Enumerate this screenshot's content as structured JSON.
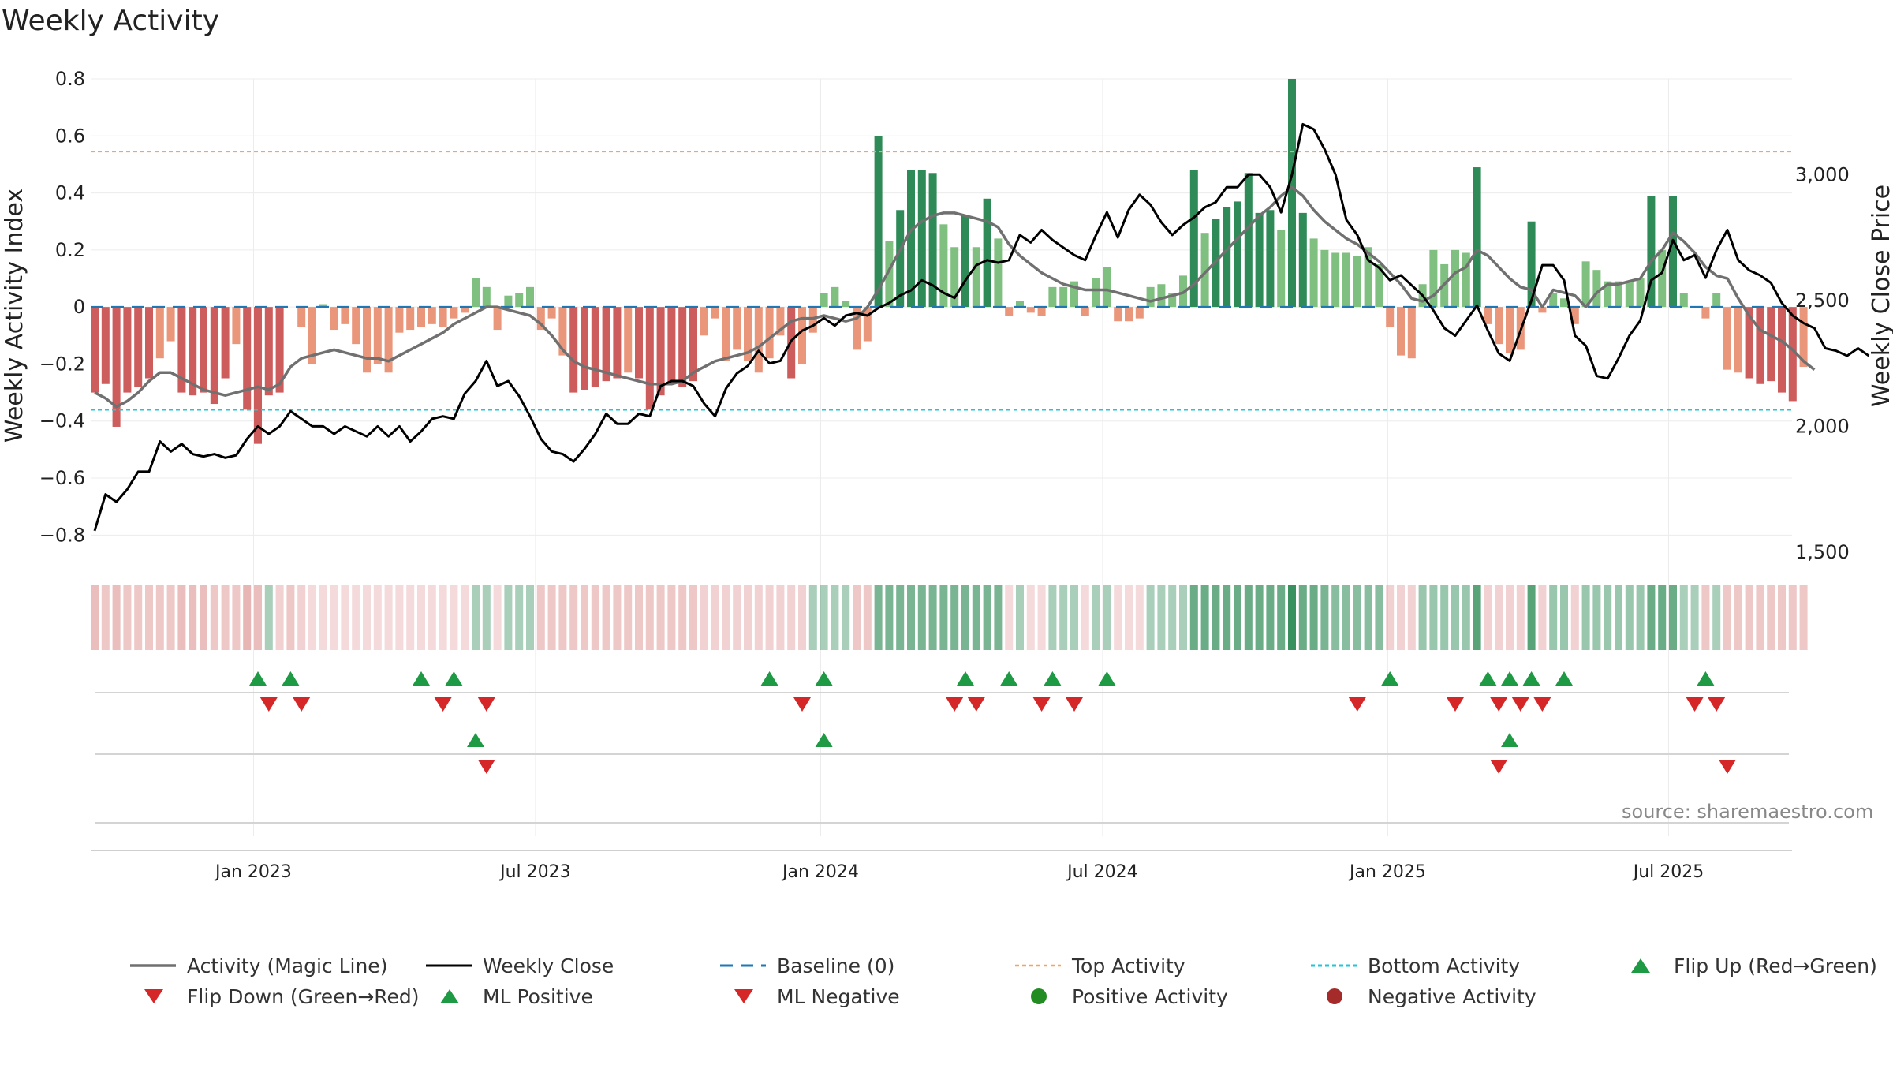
{
  "title": "Weekly Activity",
  "source": "source: sharemaestro.com",
  "colors": {
    "pos_dark": "#2e8b57",
    "pos_light": "#7fbf7f",
    "neg_dark": "#cd5c5c",
    "neg_light": "#e9967a",
    "magic_line": "#707070",
    "close_line": "#000000",
    "baseline": "#1f77b4",
    "top": "#f4a460",
    "bottom": "#22c5d8",
    "flip_up": "#1f9a44",
    "flip_down": "#d62728",
    "pos_dot": "#228b22",
    "neg_dot": "#a52a2a"
  },
  "chart_data": {
    "type": "bar",
    "title": "Weekly Activity",
    "ylabel": "Weekly Activity Index",
    "y2label": "Weekly Close Price",
    "ylim": [
      -0.86,
      0.8
    ],
    "y2lim": [
      1500,
      3380
    ],
    "yticks": [
      0.8,
      0.6,
      0.4,
      0.2,
      0,
      -0.2,
      -0.4,
      -0.6,
      -0.8
    ],
    "ytick_labels": [
      "0.8",
      "0.6",
      "0.4",
      "0.2",
      "0",
      "−0.2",
      "−0.4",
      "−0.6",
      "−0.8"
    ],
    "y2ticks": [
      3000,
      2500,
      2000,
      1500
    ],
    "y2tick_labels": [
      "3,000",
      "2,500",
      "2,000",
      "1,500"
    ],
    "start_week": 0,
    "xticks": [
      {
        "label": "Jan 2023",
        "week": 14.6
      },
      {
        "label": "Jul 2023",
        "week": 40.5
      },
      {
        "label": "Jan 2024",
        "week": 66.7
      },
      {
        "label": "Jul 2024",
        "week": 92.6
      },
      {
        "label": "Jan 2025",
        "week": 118.8
      },
      {
        "label": "Jul 2025",
        "week": 144.6
      }
    ],
    "top_activity": 0.545,
    "bottom_activity": -0.36,
    "activity": [
      -0.3,
      -0.27,
      -0.42,
      -0.3,
      -0.28,
      -0.25,
      -0.18,
      -0.12,
      -0.3,
      -0.31,
      -0.3,
      -0.34,
      -0.25,
      -0.13,
      -0.36,
      -0.48,
      -0.31,
      -0.3,
      0.0,
      -0.07,
      -0.2,
      0.01,
      -0.08,
      -0.06,
      -0.13,
      -0.23,
      -0.2,
      -0.23,
      -0.09,
      -0.08,
      -0.07,
      -0.06,
      -0.07,
      -0.04,
      -0.02,
      0.1,
      0.07,
      -0.08,
      0.04,
      0.05,
      0.07,
      -0.08,
      -0.04,
      -0.17,
      -0.3,
      -0.29,
      -0.28,
      -0.26,
      -0.25,
      -0.23,
      -0.25,
      -0.36,
      -0.31,
      -0.27,
      -0.28,
      -0.26,
      -0.1,
      -0.04,
      -0.19,
      -0.15,
      -0.19,
      -0.23,
      -0.18,
      -0.1,
      -0.25,
      -0.2,
      -0.09,
      0.05,
      0.07,
      0.02,
      -0.15,
      -0.12,
      0.6,
      0.23,
      0.34,
      0.48,
      0.48,
      0.47,
      0.29,
      0.21,
      0.32,
      0.21,
      0.38,
      0.24,
      -0.03,
      0.02,
      -0.02,
      -0.03,
      0.07,
      0.07,
      0.09,
      -0.03,
      0.1,
      0.14,
      -0.05,
      -0.05,
      -0.04,
      0.07,
      0.08,
      0.05,
      0.11,
      0.48,
      0.26,
      0.31,
      0.35,
      0.37,
      0.47,
      0.33,
      0.34,
      0.27,
      0.8,
      0.33,
      0.24,
      0.2,
      0.19,
      0.19,
      0.18,
      0.21,
      0.15,
      -0.07,
      -0.17,
      -0.18,
      0.08,
      0.2,
      0.15,
      0.2,
      0.19,
      0.49,
      -0.06,
      -0.13,
      -0.16,
      -0.15,
      0.3,
      -0.02,
      0.05,
      0.03,
      -0.06,
      0.16,
      0.13,
      0.09,
      0.09,
      0.09,
      0.1,
      0.39,
      0.2,
      0.39,
      0.05,
      0.0,
      -0.04,
      0.05,
      -0.22,
      -0.23,
      -0.25,
      -0.27,
      -0.26,
      -0.3,
      -0.33,
      -0.21
    ],
    "magic_line": [
      -0.3,
      -0.32,
      -0.35,
      -0.33,
      -0.3,
      -0.26,
      -0.23,
      -0.23,
      -0.25,
      -0.27,
      -0.29,
      -0.3,
      -0.31,
      -0.3,
      -0.29,
      -0.28,
      -0.29,
      -0.27,
      -0.21,
      -0.18,
      -0.17,
      -0.16,
      -0.15,
      -0.16,
      -0.17,
      -0.18,
      -0.18,
      -0.19,
      -0.17,
      -0.15,
      -0.13,
      -0.11,
      -0.09,
      -0.06,
      -0.04,
      -0.02,
      0.0,
      0.0,
      -0.01,
      -0.02,
      -0.03,
      -0.06,
      -0.1,
      -0.15,
      -0.19,
      -0.21,
      -0.22,
      -0.23,
      -0.24,
      -0.25,
      -0.26,
      -0.27,
      -0.27,
      -0.27,
      -0.26,
      -0.23,
      -0.21,
      -0.19,
      -0.18,
      -0.17,
      -0.16,
      -0.14,
      -0.11,
      -0.08,
      -0.05,
      -0.04,
      -0.04,
      -0.03,
      -0.04,
      -0.05,
      -0.04,
      0.0,
      0.06,
      0.13,
      0.2,
      0.27,
      0.3,
      0.32,
      0.33,
      0.33,
      0.32,
      0.31,
      0.3,
      0.28,
      0.22,
      0.18,
      0.15,
      0.12,
      0.1,
      0.08,
      0.07,
      0.06,
      0.06,
      0.06,
      0.05,
      0.04,
      0.03,
      0.02,
      0.03,
      0.04,
      0.05,
      0.08,
      0.12,
      0.16,
      0.2,
      0.24,
      0.28,
      0.32,
      0.35,
      0.39,
      0.42,
      0.39,
      0.34,
      0.3,
      0.27,
      0.24,
      0.22,
      0.19,
      0.16,
      0.12,
      0.08,
      0.03,
      0.02,
      0.04,
      0.08,
      0.12,
      0.14,
      0.2,
      0.18,
      0.14,
      0.1,
      0.07,
      0.06,
      0.0,
      0.06,
      0.05,
      0.04,
      0.0,
      0.05,
      0.08,
      0.08,
      0.09,
      0.1,
      0.16,
      0.2,
      0.26,
      0.23,
      0.19,
      0.14,
      0.11,
      0.1,
      0.03,
      -0.03,
      -0.08,
      -0.1,
      -0.12,
      -0.15,
      -0.19,
      -0.22
    ],
    "weekly_close": [
      1585,
      1730,
      1700,
      1750,
      1820,
      1820,
      1940,
      1900,
      1930,
      1890,
      1880,
      1890,
      1875,
      1885,
      1950,
      2000,
      1970,
      2000,
      2060,
      2030,
      2000,
      2000,
      1970,
      2000,
      1980,
      1960,
      2000,
      1960,
      2000,
      1940,
      1980,
      2030,
      2040,
      2030,
      2130,
      2180,
      2260,
      2160,
      2180,
      2120,
      2040,
      1950,
      1900,
      1890,
      1860,
      1910,
      1970,
      2050,
      2010,
      2010,
      2050,
      2040,
      2160,
      2180,
      2180,
      2160,
      2090,
      2040,
      2150,
      2210,
      2240,
      2300,
      2250,
      2260,
      2340,
      2380,
      2400,
      2430,
      2400,
      2440,
      2450,
      2440,
      2470,
      2490,
      2520,
      2540,
      2580,
      2560,
      2530,
      2510,
      2580,
      2640,
      2660,
      2650,
      2660,
      2760,
      2730,
      2780,
      2740,
      2710,
      2680,
      2660,
      2760,
      2850,
      2750,
      2860,
      2920,
      2880,
      2810,
      2760,
      2800,
      2830,
      2870,
      2890,
      2950,
      2950,
      3000,
      3000,
      2950,
      2850,
      3000,
      3200,
      3180,
      3100,
      3000,
      2820,
      2760,
      2660,
      2630,
      2580,
      2600,
      2560,
      2520,
      2460,
      2390,
      2360,
      2420,
      2480,
      2380,
      2290,
      2260,
      2380,
      2500,
      2640,
      2640,
      2580,
      2360,
      2320,
      2200,
      2190,
      2270,
      2360,
      2420,
      2580,
      2610,
      2740,
      2660,
      2680,
      2590,
      2700,
      2780,
      2660,
      2620,
      2600,
      2570,
      2490,
      2440,
      2410,
      2390,
      2310,
      2300,
      2280,
      2310,
      2280
    ],
    "heat_strip": [
      -0.6,
      -0.5,
      -0.6,
      -0.5,
      -0.5,
      -0.5,
      -0.5,
      -0.5,
      -0.6,
      -0.6,
      -0.6,
      -0.5,
      -0.5,
      -0.5,
      -0.7,
      -0.6,
      0.3,
      -0.4,
      -0.5,
      -0.4,
      -0.3,
      -0.3,
      -0.3,
      -0.3,
      -0.3,
      -0.3,
      -0.3,
      -0.3,
      -0.3,
      -0.3,
      -0.3,
      -0.3,
      -0.3,
      -0.3,
      -0.3,
      0.3,
      0.3,
      -0.3,
      0.3,
      0.3,
      0.3,
      -0.5,
      -0.5,
      -0.5,
      -0.5,
      -0.5,
      -0.5,
      -0.5,
      -0.5,
      -0.5,
      -0.5,
      -0.5,
      -0.5,
      -0.5,
      -0.5,
      -0.5,
      -0.4,
      -0.4,
      -0.4,
      -0.4,
      -0.4,
      -0.4,
      -0.4,
      -0.4,
      -0.4,
      -0.4,
      0.3,
      0.3,
      0.3,
      0.3,
      -0.5,
      -0.5,
      0.6,
      0.6,
      0.6,
      0.6,
      0.6,
      0.6,
      0.6,
      0.6,
      0.6,
      0.6,
      0.6,
      0.6,
      -0.3,
      0.3,
      -0.3,
      -0.3,
      0.3,
      0.3,
      0.3,
      -0.3,
      0.3,
      0.3,
      -0.3,
      -0.3,
      -0.3,
      0.3,
      0.3,
      0.3,
      0.3,
      0.7,
      0.7,
      0.7,
      0.7,
      0.7,
      0.7,
      0.7,
      0.7,
      0.7,
      1.0,
      0.7,
      0.7,
      0.6,
      0.5,
      0.5,
      0.5,
      0.5,
      0.5,
      -0.4,
      -0.4,
      -0.4,
      0.4,
      0.4,
      0.4,
      0.4,
      0.4,
      0.8,
      -0.4,
      -0.4,
      -0.4,
      -0.4,
      0.8,
      -0.4,
      0.4,
      0.4,
      -0.4,
      0.4,
      0.4,
      0.4,
      0.4,
      0.4,
      0.4,
      0.7,
      0.7,
      0.7,
      0.3,
      0.3,
      -0.5,
      0.3,
      -0.5,
      -0.5,
      -0.5,
      -0.5,
      -0.5,
      -0.5,
      -0.5,
      -0.5
    ],
    "flip_up_weeks": [
      15,
      18,
      30,
      33,
      62,
      67,
      80,
      84,
      88,
      93,
      119,
      128,
      130,
      132,
      135,
      148
    ],
    "flip_down_weeks": [
      16,
      19,
      32,
      36,
      65,
      79,
      81,
      87,
      90,
      116,
      125,
      129,
      131,
      133,
      147,
      149
    ],
    "ml_positive_weeks": [
      35,
      67,
      130
    ],
    "ml_negative_weeks": [
      36,
      129,
      150
    ],
    "legend": [
      {
        "label": "Activity (Magic Line)",
        "kind": "line-grey"
      },
      {
        "label": "Weekly Close",
        "kind": "line-black"
      },
      {
        "label": "Baseline (0)",
        "kind": "dash-blue"
      },
      {
        "label": "Top Activity",
        "kind": "dot-orange"
      },
      {
        "label": "Bottom Activity",
        "kind": "dot-cyan"
      },
      {
        "label": "Flip Up (Red→Green)",
        "kind": "tri-up"
      },
      {
        "label": "Flip Down (Green→Red)",
        "kind": "tri-down"
      },
      {
        "label": "ML Positive",
        "kind": "tri-up"
      },
      {
        "label": "ML Negative",
        "kind": "tri-down"
      },
      {
        "label": "Positive Activity",
        "kind": "dot-green"
      },
      {
        "label": "Negative Activity",
        "kind": "dot-red"
      }
    ]
  }
}
